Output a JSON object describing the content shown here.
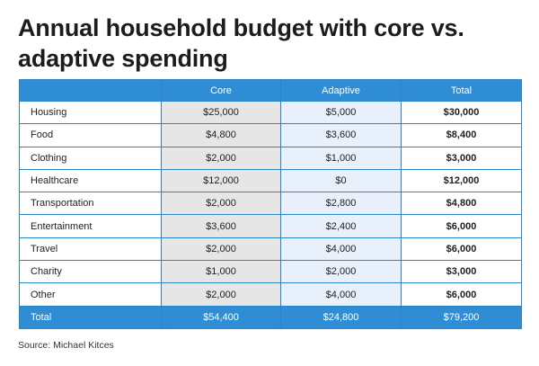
{
  "title": "Annual household budget with core vs. adaptive spending",
  "source": "Source: Michael Kitces",
  "chart_data": {
    "type": "table",
    "title": "Annual household budget with core vs. adaptive spending",
    "columns": [
      "",
      "Core",
      "Adaptive",
      "Total"
    ],
    "rows": [
      {
        "category": "Housing",
        "core": "$25,000",
        "adaptive": "$5,000",
        "total": "$30,000"
      },
      {
        "category": "Food",
        "core": "$4,800",
        "adaptive": "$3,600",
        "total": "$8,400"
      },
      {
        "category": "Clothing",
        "core": "$2,000",
        "adaptive": "$1,000",
        "total": "$3,000"
      },
      {
        "category": "Healthcare",
        "core": "$12,000",
        "adaptive": "$0",
        "total": "$12,000"
      },
      {
        "category": "Transportation",
        "core": "$2,000",
        "adaptive": "$2,800",
        "total": "$4,800"
      },
      {
        "category": "Entertainment",
        "core": "$3,600",
        "adaptive": "$2,400",
        "total": "$6,000"
      },
      {
        "category": "Travel",
        "core": "$2,000",
        "adaptive": "$4,000",
        "total": "$6,000"
      },
      {
        "category": "Charity",
        "core": "$1,000",
        "adaptive": "$2,000",
        "total": "$3,000"
      },
      {
        "category": "Other",
        "core": "$2,000",
        "adaptive": "$4,000",
        "total": "$6,000"
      }
    ],
    "total_row": {
      "category": "Total",
      "core": "$54,400",
      "adaptive": "$24,800",
      "total": "$79,200"
    },
    "colors": {
      "header": "#2f8dd6",
      "core_fill": "#e6e6e6",
      "adaptive_fill": "#e7f0fb"
    }
  }
}
